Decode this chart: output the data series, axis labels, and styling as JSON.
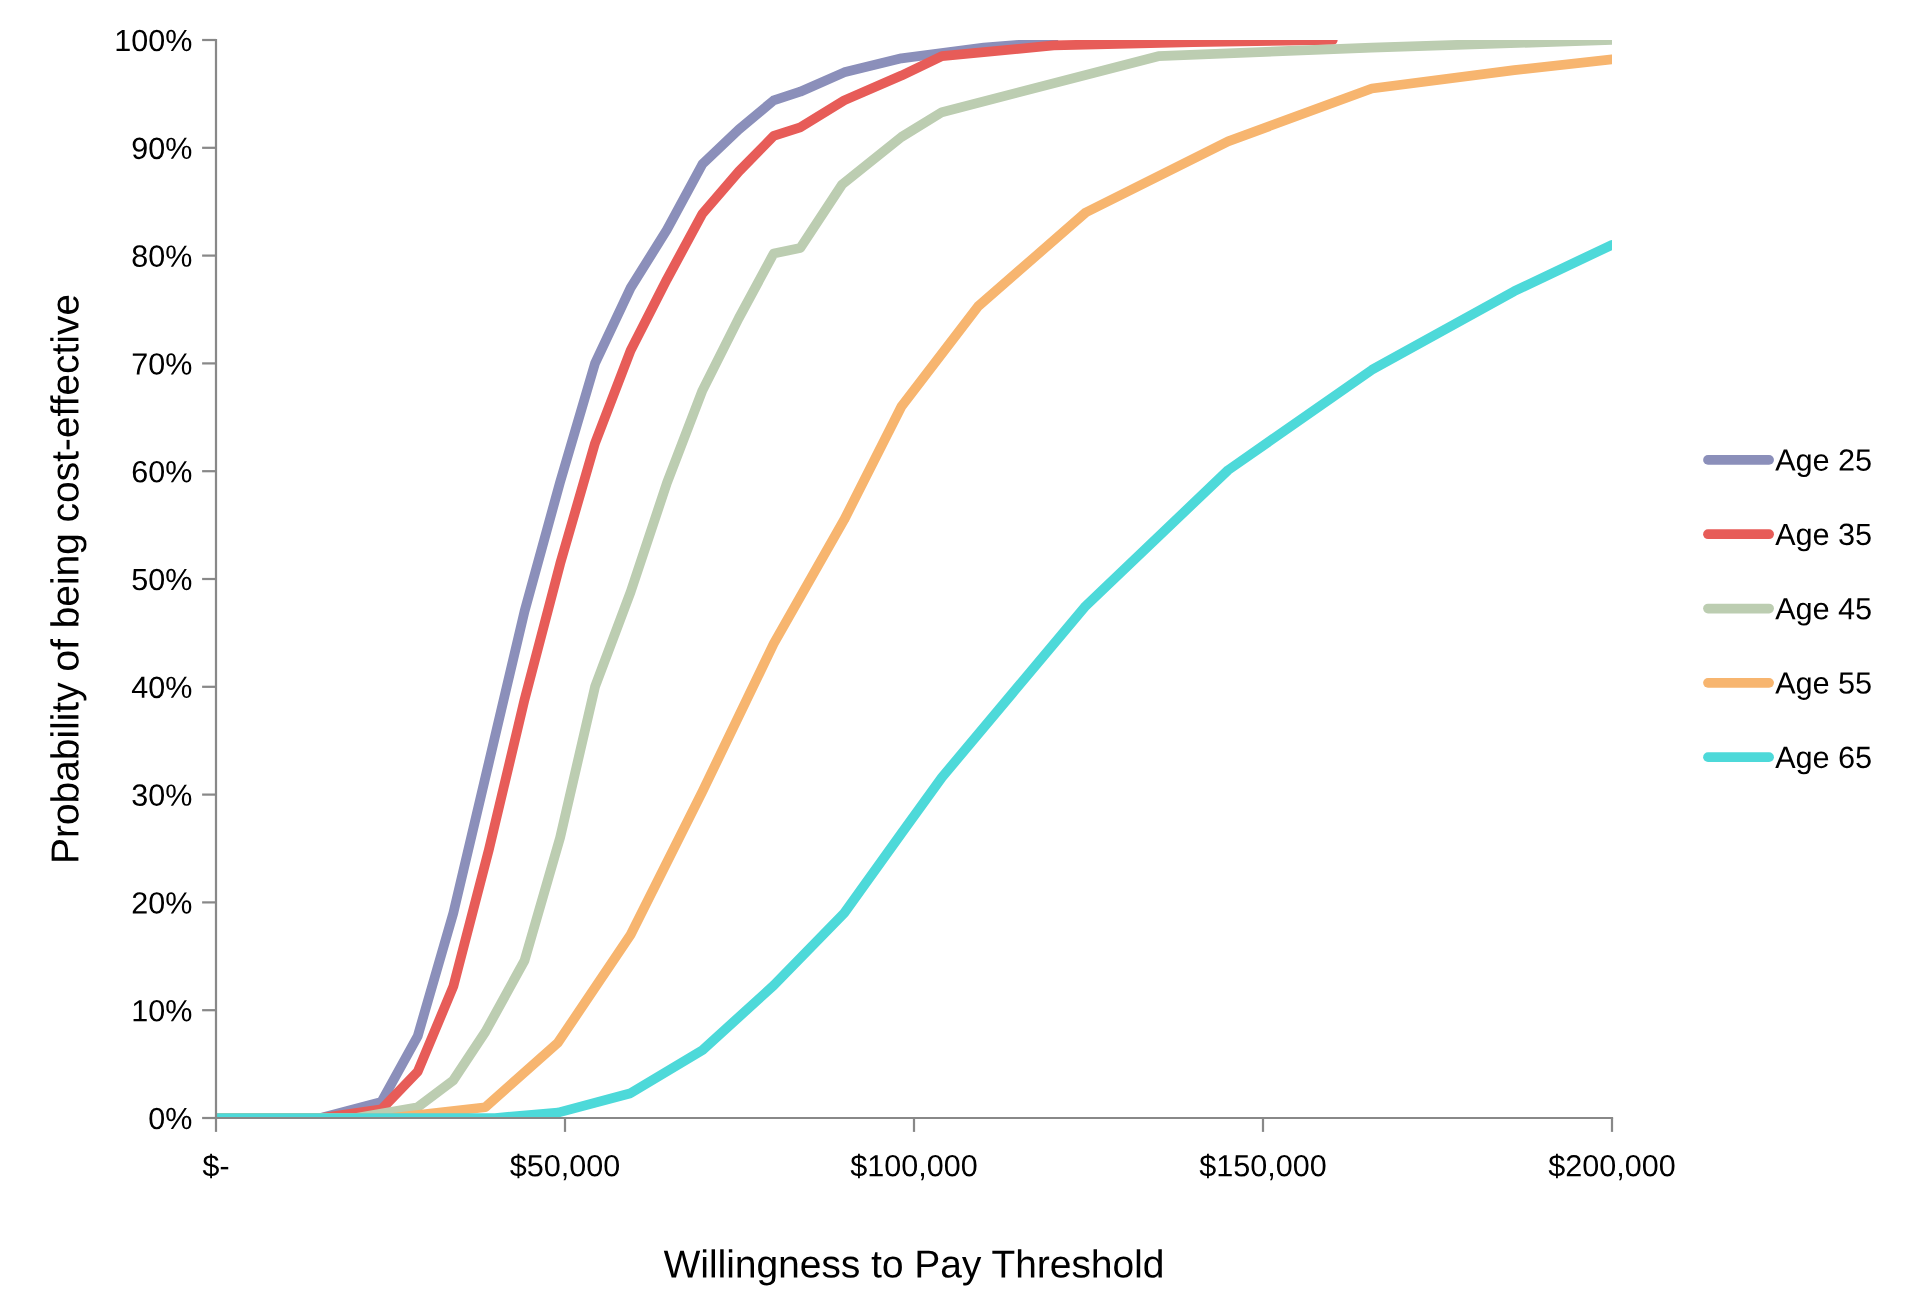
{
  "chart_data": {
    "type": "line",
    "xlabel": "Willingness to Pay Threshold",
    "ylabel": "Probability of being cost-effective",
    "xlim": [
      0,
      200000
    ],
    "ylim": [
      0,
      100
    ],
    "xticks": [
      {
        "value": 0,
        "label": "$-"
      },
      {
        "value": 50000,
        "label": "$50,000"
      },
      {
        "value": 100000,
        "label": "$100,000"
      },
      {
        "value": 150000,
        "label": "$150,000"
      },
      {
        "value": 200000,
        "label": "$200,000"
      }
    ],
    "yticks": [
      {
        "value": 0,
        "label": "0%"
      },
      {
        "value": 10,
        "label": "10%"
      },
      {
        "value": 20,
        "label": "20%"
      },
      {
        "value": 30,
        "label": "30%"
      },
      {
        "value": 40,
        "label": "40%"
      },
      {
        "value": 50,
        "label": "50%"
      },
      {
        "value": 60,
        "label": "60%"
      },
      {
        "value": 70,
        "label": "70%"
      },
      {
        "value": 80,
        "label": "80%"
      },
      {
        "value": 90,
        "label": "90%"
      },
      {
        "value": 100,
        "label": "100%"
      }
    ],
    "grid": false,
    "legend": "right",
    "marker": "none",
    "line_style": "solid",
    "series": [
      {
        "name": "Age 25",
        "color": "#8b8fba",
        "x": [
          0,
          15000,
          23700,
          28900,
          34000,
          39100,
          44200,
          49300,
          54300,
          59400,
          64600,
          69700,
          74900,
          79900,
          83700,
          90000,
          98200,
          110000,
          120000
        ],
        "values": [
          0,
          0,
          1.5,
          7.6,
          19,
          33,
          47,
          59,
          70,
          77,
          82.4,
          88.5,
          91.7,
          94.4,
          95.2,
          97,
          98.3,
          99.3,
          99.8
        ]
      },
      {
        "name": "Age 35",
        "color": "#e75c58",
        "x": [
          0,
          15000,
          23700,
          28900,
          34000,
          39100,
          44200,
          49300,
          54300,
          59400,
          64600,
          69700,
          74900,
          79900,
          83700,
          90000,
          98200,
          104000,
          120000,
          140000,
          160000
        ],
        "values": [
          0,
          0,
          0.8,
          4.3,
          12.2,
          24.9,
          38.8,
          51.4,
          62.6,
          71.2,
          77.8,
          83.9,
          87.8,
          91.1,
          91.9,
          94.4,
          96.7,
          98.5,
          99.5,
          99.8,
          100
        ]
      },
      {
        "name": "Age 45",
        "color": "#bccdb1",
        "x": [
          0,
          20000,
          28900,
          34000,
          38600,
          44200,
          49300,
          54300,
          59400,
          64600,
          69700,
          74900,
          79900,
          83700,
          89700,
          98200,
          104000,
          135000,
          165600,
          200000
        ],
        "values": [
          0,
          0,
          1,
          3.5,
          8,
          14.6,
          26,
          40,
          48.8,
          58.9,
          67.5,
          74.2,
          80.2,
          80.7,
          86.6,
          91,
          93.3,
          98.5,
          99.3,
          100
        ]
      },
      {
        "name": "Age 55",
        "color": "#f7b56f",
        "x": [
          0,
          25000,
          38600,
          49000,
          59400,
          69700,
          79900,
          90000,
          98200,
          109200,
          124600,
          145000,
          165600,
          186000,
          200000
        ],
        "values": [
          0,
          0,
          1,
          7,
          17,
          30.3,
          44,
          55.5,
          66,
          75.3,
          84,
          90.6,
          95.5,
          97.2,
          98.2
        ]
      },
      {
        "name": "Age 65",
        "color": "#4dd9d9",
        "x": [
          0,
          40000,
          49000,
          59400,
          69700,
          79900,
          90000,
          98200,
          104000,
          124600,
          145000,
          165600,
          186000,
          200000
        ],
        "values": [
          0,
          0,
          0.5,
          2.3,
          6.3,
          12.3,
          19,
          26.4,
          31.6,
          47.5,
          60.1,
          69.4,
          76.7,
          81
        ]
      }
    ]
  }
}
